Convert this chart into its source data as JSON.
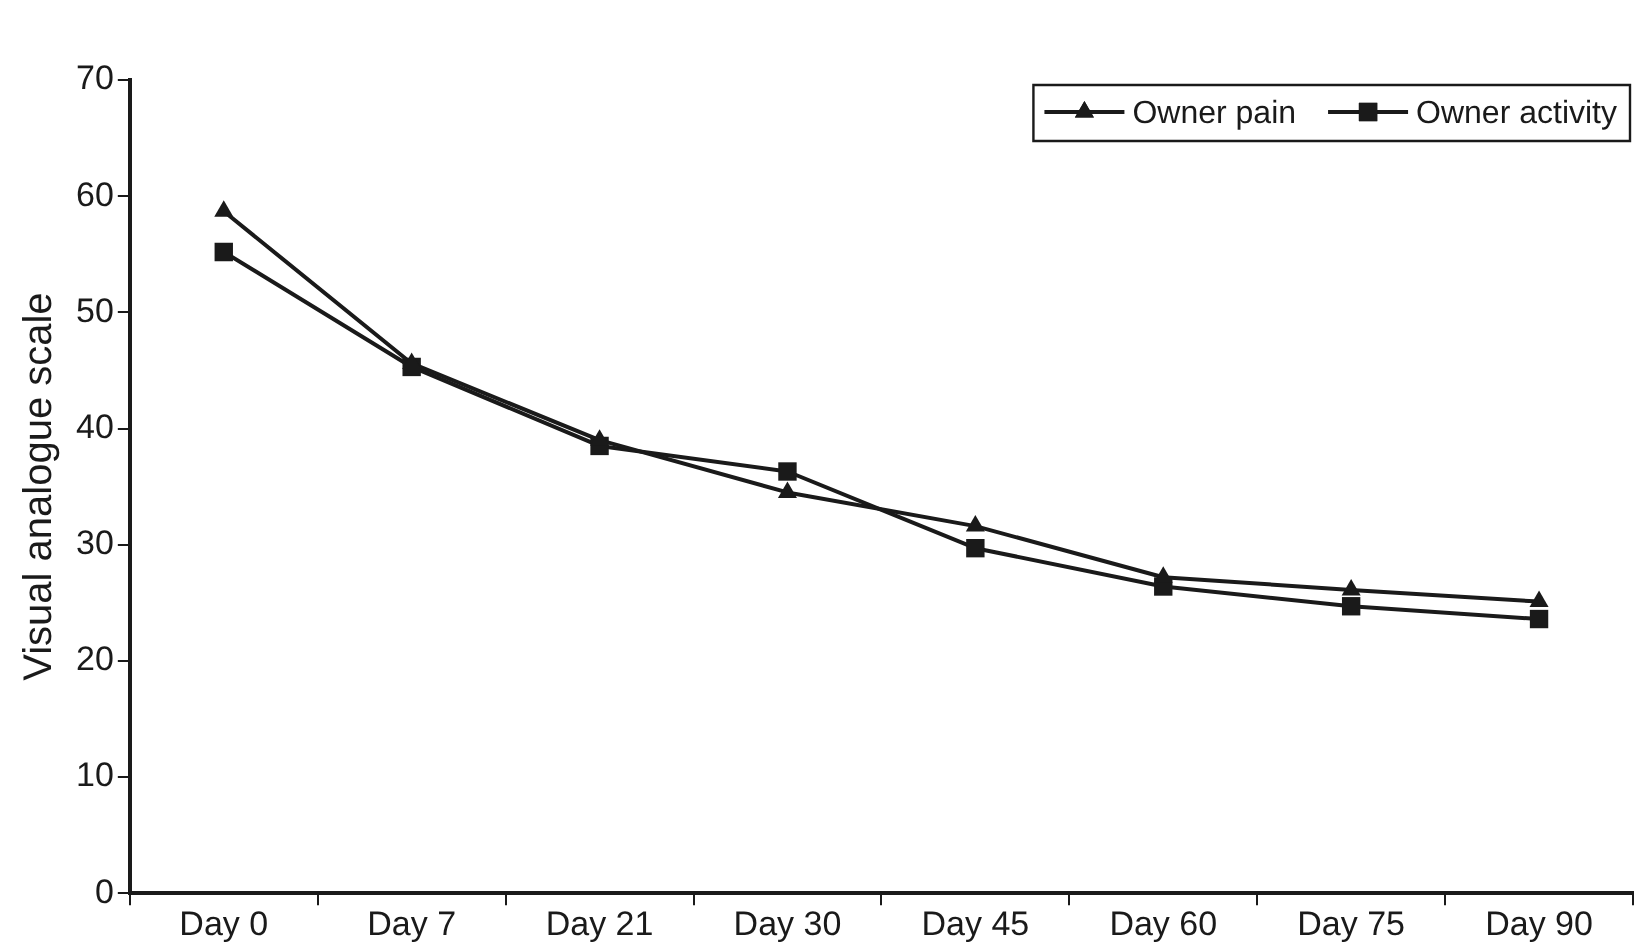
{
  "chart_data": {
    "type": "line",
    "ylabel": "Visual analogue scale",
    "categories": [
      "Day 0",
      "Day 7",
      "Day 21",
      "Day 30",
      "Day 45",
      "Day 60",
      "Day 75",
      "Day 90"
    ],
    "series": [
      {
        "name": "Owner pain",
        "color": "#1a1a1a",
        "marker": "triangle",
        "values": [
          58.7,
          45.6,
          39.0,
          34.5,
          31.6,
          27.2,
          26.1,
          25.1
        ]
      },
      {
        "name": "Owner activity",
        "color": "#1a1a1a",
        "marker": "square",
        "values": [
          55.2,
          45.3,
          38.5,
          36.3,
          29.7,
          26.4,
          24.7,
          23.6
        ]
      }
    ],
    "ylim": [
      0,
      70
    ],
    "yticks": [
      0,
      10,
      20,
      30,
      40,
      50,
      60,
      70
    ],
    "grid": false,
    "legend": "top right",
    "line_style": "solid"
  }
}
